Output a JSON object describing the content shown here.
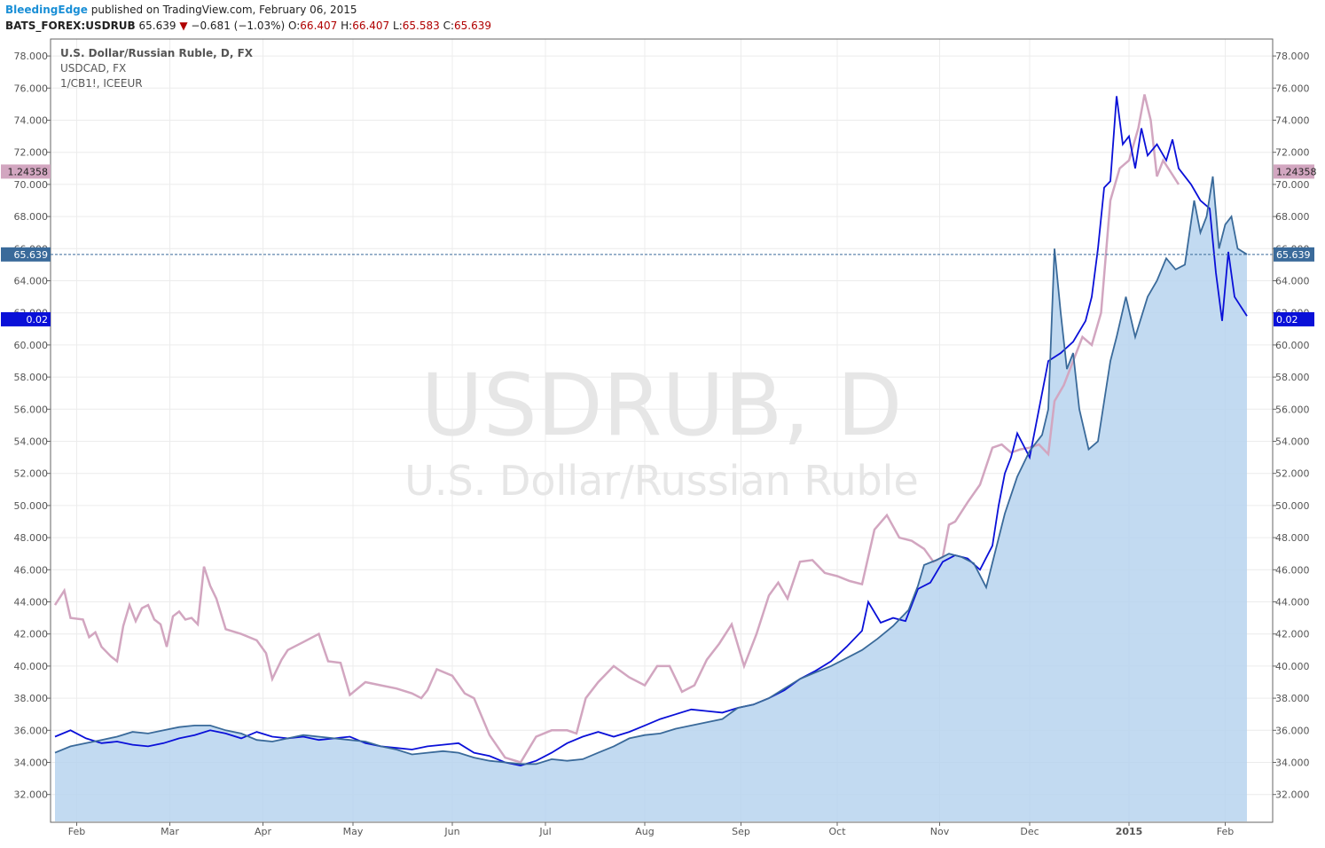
{
  "header": {
    "author": "BleedingEdge",
    "published_text": "published on TradingView.com, February 06, 2015",
    "symbol": "BATS_FOREX:USDRUB",
    "last": "65.639",
    "change_arrow": "▼",
    "change": "−0.681 (−1.03%)",
    "open_label": "O:",
    "open": "66.407",
    "high_label": "H:",
    "high": "66.407",
    "low_label": "L:",
    "low": "65.583",
    "close_label": "C:",
    "close": "65.639"
  },
  "legend": {
    "main": "U.S. Dollar/Russian Ruble, D, FX",
    "line2": "USDCAD, FX",
    "line3": "1/CB1!, ICEEUR"
  },
  "watermark": {
    "line1": "USDRUB, D",
    "line2": "U.S. Dollar/Russian Ruble"
  },
  "price_labels": {
    "pink": "1.24358",
    "main": "65.639",
    "blue": "0.02"
  },
  "colors": {
    "area_fill": "#b7d3ee",
    "area_line": "#3a6a9a",
    "usdcad": "#0a10d8",
    "brent_inv": "#d2a6c0",
    "last_price": "#3a6a9a"
  },
  "chart_data": {
    "type": "area",
    "title": "U.S. Dollar/Russian Ruble, D, FX",
    "ylim": [
      31.0,
      79.0
    ],
    "yticks": [
      "32.000",
      "34.000",
      "36.000",
      "38.000",
      "40.000",
      "42.000",
      "44.000",
      "46.000",
      "48.000",
      "50.000",
      "52.000",
      "54.000",
      "56.000",
      "58.000",
      "60.000",
      "62.000",
      "64.000",
      "66.000",
      "68.000",
      "70.000",
      "72.000",
      "74.000",
      "76.000",
      "78.000"
    ],
    "x_tick_labels": [
      "Feb",
      "Mar",
      "Apr",
      "May",
      "Jun",
      "Jul",
      "Aug",
      "Sep",
      "Oct",
      "Nov",
      "Dec",
      "2015",
      "Feb"
    ],
    "x_range_days": [
      0,
      375
    ],
    "x_ticks_days": [
      7,
      37,
      67,
      96,
      128,
      158,
      190,
      221,
      252,
      285,
      314,
      346,
      377
    ],
    "last_price": 65.639,
    "series": [
      {
        "name": "U.S. Dollar/Russian Ruble",
        "style": "area",
        "points": [
          [
            0,
            34.6
          ],
          [
            5,
            35.0
          ],
          [
            10,
            35.2
          ],
          [
            15,
            35.4
          ],
          [
            20,
            35.6
          ],
          [
            25,
            35.9
          ],
          [
            30,
            35.8
          ],
          [
            35,
            36.0
          ],
          [
            40,
            36.2
          ],
          [
            45,
            36.3
          ],
          [
            50,
            36.3
          ],
          [
            55,
            36.0
          ],
          [
            60,
            35.8
          ],
          [
            65,
            35.4
          ],
          [
            70,
            35.3
          ],
          [
            75,
            35.5
          ],
          [
            80,
            35.7
          ],
          [
            85,
            35.6
          ],
          [
            90,
            35.5
          ],
          [
            95,
            35.4
          ],
          [
            100,
            35.3
          ],
          [
            105,
            35.0
          ],
          [
            110,
            34.8
          ],
          [
            115,
            34.5
          ],
          [
            120,
            34.6
          ],
          [
            125,
            34.7
          ],
          [
            130,
            34.6
          ],
          [
            135,
            34.3
          ],
          [
            140,
            34.1
          ],
          [
            145,
            34.0
          ],
          [
            150,
            33.9
          ],
          [
            155,
            33.9
          ],
          [
            160,
            34.2
          ],
          [
            165,
            34.1
          ],
          [
            170,
            34.2
          ],
          [
            175,
            34.6
          ],
          [
            180,
            35.0
          ],
          [
            185,
            35.5
          ],
          [
            190,
            35.7
          ],
          [
            195,
            35.8
          ],
          [
            200,
            36.1
          ],
          [
            205,
            36.3
          ],
          [
            210,
            36.5
          ],
          [
            215,
            36.7
          ],
          [
            220,
            37.4
          ],
          [
            225,
            37.6
          ],
          [
            230,
            38.0
          ],
          [
            235,
            38.6
          ],
          [
            240,
            39.2
          ],
          [
            245,
            39.6
          ],
          [
            250,
            40.0
          ],
          [
            255,
            40.5
          ],
          [
            260,
            41.0
          ],
          [
            265,
            41.7
          ],
          [
            270,
            42.5
          ],
          [
            275,
            43.5
          ],
          [
            278,
            45.0
          ],
          [
            280,
            46.3
          ],
          [
            284,
            46.6
          ],
          [
            288,
            47.0
          ],
          [
            292,
            46.8
          ],
          [
            296,
            46.4
          ],
          [
            300,
            44.9
          ],
          [
            303,
            47.2
          ],
          [
            306,
            49.5
          ],
          [
            310,
            51.8
          ],
          [
            314,
            53.4
          ],
          [
            318,
            54.4
          ],
          [
            320,
            56.0
          ],
          [
            322,
            66.0
          ],
          [
            324,
            62.0
          ],
          [
            326,
            58.5
          ],
          [
            328,
            59.5
          ],
          [
            330,
            56.0
          ],
          [
            333,
            53.5
          ],
          [
            336,
            54.0
          ],
          [
            340,
            59.0
          ],
          [
            342,
            60.5
          ],
          [
            345,
            63.0
          ],
          [
            348,
            60.5
          ],
          [
            352,
            63.0
          ],
          [
            355,
            64.0
          ],
          [
            358,
            65.4
          ],
          [
            361,
            64.7
          ],
          [
            364,
            65.0
          ],
          [
            367,
            69.0
          ],
          [
            369,
            67.0
          ],
          [
            371,
            68.0
          ],
          [
            373,
            70.5
          ],
          [
            375,
            66.0
          ],
          [
            377,
            67.5
          ],
          [
            379,
            68.0
          ],
          [
            381,
            66.0
          ],
          [
            384,
            65.639
          ]
        ]
      },
      {
        "name": "USDCAD",
        "style": "line",
        "points": [
          [
            0,
            35.6
          ],
          [
            5,
            36.0
          ],
          [
            10,
            35.5
          ],
          [
            15,
            35.2
          ],
          [
            20,
            35.3
          ],
          [
            25,
            35.1
          ],
          [
            30,
            35.0
          ],
          [
            35,
            35.2
          ],
          [
            40,
            35.5
          ],
          [
            45,
            35.7
          ],
          [
            50,
            36.0
          ],
          [
            55,
            35.8
          ],
          [
            60,
            35.5
          ],
          [
            65,
            35.9
          ],
          [
            70,
            35.6
          ],
          [
            75,
            35.5
          ],
          [
            80,
            35.6
          ],
          [
            85,
            35.4
          ],
          [
            90,
            35.5
          ],
          [
            95,
            35.6
          ],
          [
            100,
            35.2
          ],
          [
            105,
            35.0
          ],
          [
            110,
            34.9
          ],
          [
            115,
            34.8
          ],
          [
            120,
            35.0
          ],
          [
            125,
            35.1
          ],
          [
            130,
            35.2
          ],
          [
            135,
            34.6
          ],
          [
            140,
            34.4
          ],
          [
            145,
            34.0
          ],
          [
            150,
            33.8
          ],
          [
            155,
            34.1
          ],
          [
            160,
            34.6
          ],
          [
            165,
            35.2
          ],
          [
            170,
            35.6
          ],
          [
            175,
            35.9
          ],
          [
            180,
            35.6
          ],
          [
            185,
            35.9
          ],
          [
            190,
            36.3
          ],
          [
            195,
            36.7
          ],
          [
            200,
            37.0
          ],
          [
            205,
            37.3
          ],
          [
            210,
            37.2
          ],
          [
            215,
            37.1
          ],
          [
            220,
            37.4
          ],
          [
            225,
            37.6
          ],
          [
            230,
            38.0
          ],
          [
            235,
            38.5
          ],
          [
            240,
            39.2
          ],
          [
            245,
            39.7
          ],
          [
            250,
            40.3
          ],
          [
            255,
            41.2
          ],
          [
            260,
            42.2
          ],
          [
            262,
            44.0
          ],
          [
            266,
            42.7
          ],
          [
            270,
            43.0
          ],
          [
            274,
            42.8
          ],
          [
            278,
            44.8
          ],
          [
            282,
            45.2
          ],
          [
            286,
            46.5
          ],
          [
            290,
            46.9
          ],
          [
            294,
            46.7
          ],
          [
            298,
            46.0
          ],
          [
            302,
            47.5
          ],
          [
            304,
            50.0
          ],
          [
            306,
            52.0
          ],
          [
            308,
            53.0
          ],
          [
            310,
            54.5
          ],
          [
            314,
            53.0
          ],
          [
            317,
            56.0
          ],
          [
            320,
            59.0
          ],
          [
            324,
            59.5
          ],
          [
            328,
            60.2
          ],
          [
            332,
            61.5
          ],
          [
            334,
            63.0
          ],
          [
            336,
            66.0
          ],
          [
            338,
            69.8
          ],
          [
            340,
            70.2
          ],
          [
            342,
            75.5
          ],
          [
            344,
            72.5
          ],
          [
            346,
            73.0
          ],
          [
            348,
            71.0
          ],
          [
            350,
            73.5
          ],
          [
            352,
            71.8
          ],
          [
            355,
            72.5
          ],
          [
            358,
            71.5
          ],
          [
            360,
            72.8
          ],
          [
            362,
            71.0
          ],
          [
            366,
            70.0
          ],
          [
            369,
            69.0
          ],
          [
            372,
            68.5
          ],
          [
            374,
            64.5
          ],
          [
            376,
            61.5
          ],
          [
            378,
            65.8
          ],
          [
            380,
            63.0
          ],
          [
            384,
            61.8
          ]
        ]
      },
      {
        "name": "1/CB1!",
        "style": "line",
        "points": [
          [
            0,
            43.8
          ],
          [
            3,
            44.7
          ],
          [
            5,
            43.0
          ],
          [
            9,
            42.9
          ],
          [
            11,
            41.8
          ],
          [
            13,
            42.1
          ],
          [
            15,
            41.2
          ],
          [
            18,
            40.6
          ],
          [
            20,
            40.3
          ],
          [
            22,
            42.5
          ],
          [
            24,
            43.8
          ],
          [
            26,
            42.8
          ],
          [
            28,
            43.6
          ],
          [
            30,
            43.8
          ],
          [
            32,
            42.9
          ],
          [
            34,
            42.6
          ],
          [
            36,
            41.2
          ],
          [
            38,
            43.1
          ],
          [
            40,
            43.4
          ],
          [
            42,
            42.9
          ],
          [
            44,
            43.0
          ],
          [
            46,
            42.6
          ],
          [
            48,
            46.2
          ],
          [
            50,
            45.0
          ],
          [
            52,
            44.2
          ],
          [
            55,
            42.3
          ],
          [
            60,
            42.0
          ],
          [
            65,
            41.6
          ],
          [
            68,
            40.8
          ],
          [
            70,
            39.2
          ],
          [
            73,
            40.4
          ],
          [
            75,
            41.0
          ],
          [
            80,
            41.5
          ],
          [
            85,
            42.0
          ],
          [
            88,
            40.3
          ],
          [
            92,
            40.2
          ],
          [
            95,
            38.2
          ],
          [
            100,
            39.0
          ],
          [
            105,
            38.8
          ],
          [
            110,
            38.6
          ],
          [
            115,
            38.3
          ],
          [
            118,
            38.0
          ],
          [
            120,
            38.5
          ],
          [
            123,
            39.8
          ],
          [
            128,
            39.4
          ],
          [
            132,
            38.3
          ],
          [
            135,
            38.0
          ],
          [
            140,
            35.7
          ],
          [
            145,
            34.3
          ],
          [
            150,
            34.0
          ],
          [
            155,
            35.6
          ],
          [
            160,
            36.0
          ],
          [
            165,
            36.0
          ],
          [
            168,
            35.8
          ],
          [
            171,
            38.0
          ],
          [
            175,
            39.0
          ],
          [
            180,
            40.0
          ],
          [
            185,
            39.3
          ],
          [
            190,
            38.8
          ],
          [
            194,
            40.0
          ],
          [
            198,
            40.0
          ],
          [
            202,
            38.4
          ],
          [
            206,
            38.8
          ],
          [
            210,
            40.4
          ],
          [
            214,
            41.4
          ],
          [
            218,
            42.6
          ],
          [
            222,
            40.0
          ],
          [
            226,
            42.0
          ],
          [
            230,
            44.4
          ],
          [
            233,
            45.2
          ],
          [
            236,
            44.2
          ],
          [
            240,
            46.5
          ],
          [
            244,
            46.6
          ],
          [
            248,
            45.8
          ],
          [
            252,
            45.6
          ],
          [
            256,
            45.3
          ],
          [
            260,
            45.1
          ],
          [
            264,
            48.5
          ],
          [
            268,
            49.4
          ],
          [
            272,
            48.0
          ],
          [
            276,
            47.8
          ],
          [
            280,
            47.3
          ],
          [
            283,
            46.5
          ],
          [
            286,
            46.8
          ],
          [
            288,
            48.8
          ],
          [
            290,
            49.0
          ],
          [
            294,
            50.2
          ],
          [
            298,
            51.3
          ],
          [
            302,
            53.6
          ],
          [
            305,
            53.8
          ],
          [
            308,
            53.3
          ],
          [
            311,
            53.5
          ],
          [
            314,
            53.6
          ],
          [
            317,
            53.8
          ],
          [
            320,
            53.2
          ],
          [
            322,
            56.5
          ],
          [
            325,
            57.5
          ],
          [
            328,
            59.0
          ],
          [
            331,
            60.5
          ],
          [
            334,
            60.0
          ],
          [
            337,
            62.0
          ],
          [
            340,
            69.0
          ],
          [
            343,
            71.0
          ],
          [
            346,
            71.5
          ],
          [
            349,
            73.5
          ],
          [
            351,
            75.6
          ],
          [
            353,
            74.0
          ],
          [
            355,
            70.5
          ],
          [
            357,
            71.5
          ],
          [
            360,
            70.6
          ],
          [
            362,
            70.0
          ]
        ]
      }
    ]
  }
}
